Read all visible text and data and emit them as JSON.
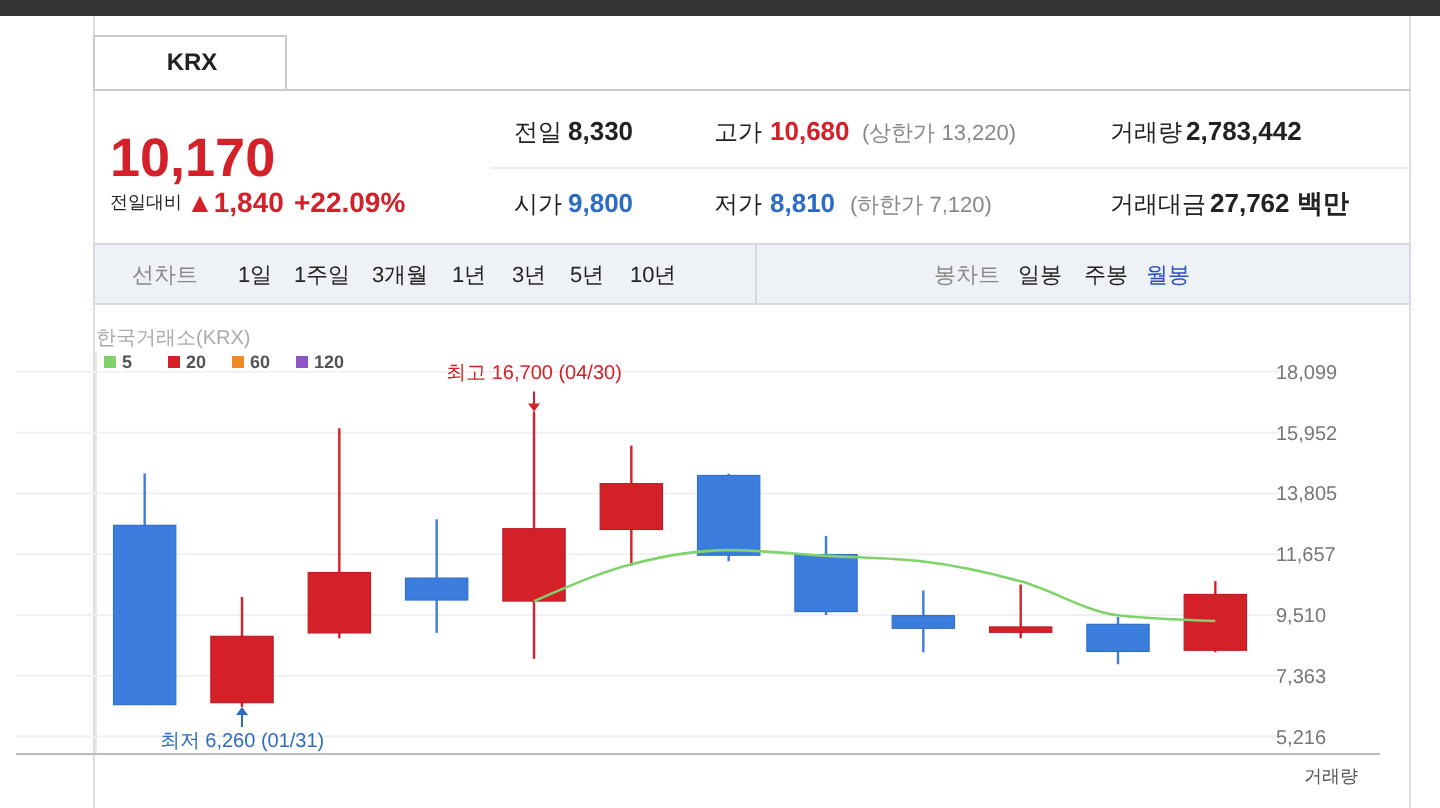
{
  "chart_data": {
    "type": "candlestick",
    "title": "한국거래소(KRX)",
    "categories": [
      null,
      null,
      null,
      null,
      null,
      null,
      null,
      null,
      null,
      null,
      null,
      null
    ],
    "ohlc": [
      [
        12678,
        14509,
        6342,
        6342
      ],
      [
        6413,
        10144,
        6260,
        8757
      ],
      [
        8877,
        16107,
        8687,
        11010
      ],
      [
        10813,
        12890,
        8877,
        10039
      ],
      [
        10003,
        16700,
        7962,
        12559
      ],
      [
        12531,
        15494,
        11249,
        14150
      ],
      [
        14438,
        14500,
        11411,
        11622
      ],
      [
        11643,
        12305,
        9510,
        9630
      ],
      [
        9489,
        10376,
        8194,
        9039
      ],
      [
        8898,
        10587,
        8687,
        9088
      ],
      [
        9180,
        9440,
        7771,
        8222
      ],
      [
        8265,
        10707,
        8194,
        10236
      ]
    ],
    "colors": [
      "#3b7ddd",
      "#d42029",
      "#d42029",
      "#3b7ddd",
      "#d42029",
      "#d42029",
      "#3b7ddd",
      "#3b7ddd",
      "#3b7ddd",
      "#d42029",
      "#3b7ddd",
      "#d42029"
    ],
    "series": [
      {
        "type": "line",
        "name": "5",
        "color": "#7fd36a",
        "values": [
          null,
          null,
          null,
          null,
          10000,
          11300,
          11800,
          11600,
          11400,
          10700,
          9500,
          9300
        ]
      },
      {
        "type": "line",
        "name": "20",
        "color": "#d42029",
        "values": [
          null,
          null,
          null,
          null,
          null,
          null,
          null,
          null,
          null,
          null,
          null,
          null
        ]
      },
      {
        "type": "line",
        "name": "60",
        "color": "#f08a24",
        "values": [
          null,
          null,
          null,
          null,
          null,
          null,
          null,
          null,
          null,
          null,
          null,
          null
        ]
      },
      {
        "type": "line",
        "name": "120",
        "color": "#8e55c4",
        "values": [
          null,
          null,
          null,
          null,
          null,
          null,
          null,
          null,
          null,
          null,
          null,
          null
        ]
      }
    ],
    "ylim": [
      4600,
      18800
    ],
    "yticks": [
      {
        "value": 18099,
        "label": "18,099"
      },
      {
        "value": 15952,
        "label": "15,952"
      },
      {
        "value": 13805,
        "label": "13,805"
      },
      {
        "value": 11657,
        "label": "11,657"
      },
      {
        "value": 9510,
        "label": "9,510"
      },
      {
        "value": 7363,
        "label": "7,363"
      },
      {
        "value": 5216,
        "label": "5,216"
      }
    ],
    "grid": "y",
    "legend": "top left",
    "annotations": [
      "KRX",
      "10,170",
      "전일대비",
      "▲1,840",
      "+22.09%",
      "전일",
      "8,330",
      "고가",
      "10,680",
      "(상한가 13,220)",
      "거래량",
      "2,783,442",
      "시가",
      "9,800",
      "저가",
      "8,810",
      "(하한가 7,120)",
      "거래대금",
      "27,762 백만",
      "선차트",
      "1일",
      "1주일",
      "3개월",
      "1년",
      "3년",
      "5년",
      "10년",
      "봉차트",
      "일봉",
      "주봉",
      "월봉",
      "거래량",
      {
        "text": "최고 16,700 (04/30)",
        "y": 16700
      },
      {
        "text": "최저 6,260 (01/31)",
        "y": 6260
      }
    ]
  }
}
